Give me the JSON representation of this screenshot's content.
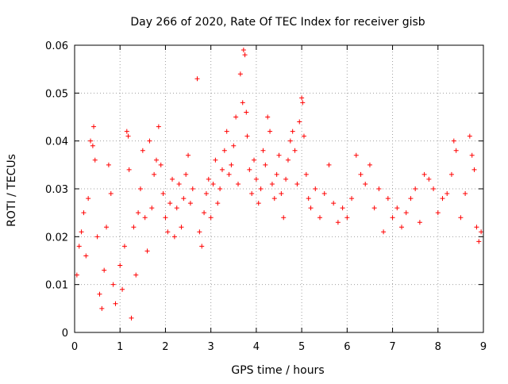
{
  "chart_data": {
    "type": "scatter",
    "title": "Day 266 of 2020, Rate Of TEC Index for receiver gisb",
    "xlabel": "GPS time / hours",
    "ylabel": "ROTI / TECUs",
    "xlim": [
      0,
      9
    ],
    "ylim": [
      0,
      0.06
    ],
    "xticks": [
      0,
      1,
      2,
      3,
      4,
      5,
      6,
      7,
      8,
      9
    ],
    "xtick_labels": [
      "0",
      "1",
      "2",
      "3",
      "4",
      "5",
      "6",
      "7",
      "8",
      "9"
    ],
    "yticks": [
      0,
      0.01,
      0.02,
      0.03,
      0.04,
      0.05,
      0.06
    ],
    "ytick_labels": [
      "0",
      "0.01",
      "0.02",
      "0.03",
      "0.04",
      "0.05",
      "0.06"
    ],
    "grid": true,
    "marker": "+",
    "color": "#ff0000",
    "series": [
      {
        "name": "ROTI",
        "points": [
          [
            0.05,
            0.012
          ],
          [
            0.1,
            0.018
          ],
          [
            0.15,
            0.021
          ],
          [
            0.2,
            0.025
          ],
          [
            0.25,
            0.016
          ],
          [
            0.3,
            0.028
          ],
          [
            0.35,
            0.04
          ],
          [
            0.4,
            0.039
          ],
          [
            0.42,
            0.043
          ],
          [
            0.45,
            0.036
          ],
          [
            0.5,
            0.02
          ],
          [
            0.55,
            0.008
          ],
          [
            0.6,
            0.005
          ],
          [
            0.65,
            0.013
          ],
          [
            0.7,
            0.022
          ],
          [
            0.75,
            0.035
          ],
          [
            0.8,
            0.029
          ],
          [
            0.85,
            0.01
          ],
          [
            0.9,
            0.006
          ],
          [
            1.0,
            0.014
          ],
          [
            1.05,
            0.009
          ],
          [
            1.1,
            0.018
          ],
          [
            1.15,
            0.042
          ],
          [
            1.18,
            0.041
          ],
          [
            1.2,
            0.034
          ],
          [
            1.25,
            0.003
          ],
          [
            1.3,
            0.022
          ],
          [
            1.35,
            0.012
          ],
          [
            1.4,
            0.025
          ],
          [
            1.45,
            0.03
          ],
          [
            1.5,
            0.038
          ],
          [
            1.55,
            0.024
          ],
          [
            1.6,
            0.017
          ],
          [
            1.65,
            0.04
          ],
          [
            1.7,
            0.026
          ],
          [
            1.75,
            0.033
          ],
          [
            1.8,
            0.036
          ],
          [
            1.85,
            0.043
          ],
          [
            1.9,
            0.035
          ],
          [
            1.95,
            0.029
          ],
          [
            2.0,
            0.024
          ],
          [
            2.05,
            0.021
          ],
          [
            2.1,
            0.027
          ],
          [
            2.15,
            0.032
          ],
          [
            2.2,
            0.02
          ],
          [
            2.25,
            0.026
          ],
          [
            2.3,
            0.031
          ],
          [
            2.35,
            0.022
          ],
          [
            2.4,
            0.028
          ],
          [
            2.45,
            0.033
          ],
          [
            2.5,
            0.037
          ],
          [
            2.55,
            0.027
          ],
          [
            2.6,
            0.03
          ],
          [
            2.7,
            0.053
          ],
          [
            2.75,
            0.021
          ],
          [
            2.8,
            0.018
          ],
          [
            2.85,
            0.025
          ],
          [
            2.9,
            0.029
          ],
          [
            2.95,
            0.032
          ],
          [
            3.0,
            0.024
          ],
          [
            3.05,
            0.031
          ],
          [
            3.1,
            0.036
          ],
          [
            3.15,
            0.027
          ],
          [
            3.2,
            0.03
          ],
          [
            3.25,
            0.034
          ],
          [
            3.3,
            0.038
          ],
          [
            3.35,
            0.042
          ],
          [
            3.4,
            0.033
          ],
          [
            3.45,
            0.035
          ],
          [
            3.5,
            0.039
          ],
          [
            3.55,
            0.045
          ],
          [
            3.6,
            0.031
          ],
          [
            3.65,
            0.054
          ],
          [
            3.7,
            0.048
          ],
          [
            3.72,
            0.059
          ],
          [
            3.75,
            0.058
          ],
          [
            3.78,
            0.046
          ],
          [
            3.8,
            0.041
          ],
          [
            3.85,
            0.034
          ],
          [
            3.9,
            0.029
          ],
          [
            3.95,
            0.036
          ],
          [
            4.0,
            0.032
          ],
          [
            4.05,
            0.027
          ],
          [
            4.1,
            0.03
          ],
          [
            4.15,
            0.038
          ],
          [
            4.2,
            0.035
          ],
          [
            4.25,
            0.045
          ],
          [
            4.3,
            0.042
          ],
          [
            4.35,
            0.031
          ],
          [
            4.4,
            0.028
          ],
          [
            4.45,
            0.033
          ],
          [
            4.5,
            0.037
          ],
          [
            4.55,
            0.029
          ],
          [
            4.6,
            0.024
          ],
          [
            4.65,
            0.032
          ],
          [
            4.7,
            0.036
          ],
          [
            4.75,
            0.04
          ],
          [
            4.8,
            0.042
          ],
          [
            4.85,
            0.038
          ],
          [
            4.9,
            0.031
          ],
          [
            4.95,
            0.044
          ],
          [
            5.0,
            0.049
          ],
          [
            5.02,
            0.048
          ],
          [
            5.05,
            0.041
          ],
          [
            5.1,
            0.033
          ],
          [
            5.15,
            0.028
          ],
          [
            5.2,
            0.026
          ],
          [
            5.3,
            0.03
          ],
          [
            5.4,
            0.024
          ],
          [
            5.5,
            0.029
          ],
          [
            5.6,
            0.035
          ],
          [
            5.7,
            0.027
          ],
          [
            5.8,
            0.023
          ],
          [
            5.9,
            0.026
          ],
          [
            6.0,
            0.024
          ],
          [
            6.1,
            0.028
          ],
          [
            6.2,
            0.037
          ],
          [
            6.3,
            0.033
          ],
          [
            6.4,
            0.031
          ],
          [
            6.5,
            0.035
          ],
          [
            6.6,
            0.026
          ],
          [
            6.7,
            0.03
          ],
          [
            6.8,
            0.021
          ],
          [
            6.9,
            0.028
          ],
          [
            7.0,
            0.024
          ],
          [
            7.1,
            0.026
          ],
          [
            7.2,
            0.022
          ],
          [
            7.3,
            0.025
          ],
          [
            7.4,
            0.028
          ],
          [
            7.5,
            0.03
          ],
          [
            7.6,
            0.023
          ],
          [
            7.7,
            0.033
          ],
          [
            7.8,
            0.032
          ],
          [
            7.9,
            0.03
          ],
          [
            8.0,
            0.025
          ],
          [
            8.1,
            0.028
          ],
          [
            8.2,
            0.029
          ],
          [
            8.3,
            0.033
          ],
          [
            8.35,
            0.04
          ],
          [
            8.4,
            0.038
          ],
          [
            8.5,
            0.024
          ],
          [
            8.6,
            0.029
          ],
          [
            8.7,
            0.041
          ],
          [
            8.75,
            0.037
          ],
          [
            8.8,
            0.034
          ],
          [
            8.85,
            0.022
          ],
          [
            8.9,
            0.019
          ],
          [
            8.95,
            0.021
          ]
        ]
      }
    ]
  }
}
